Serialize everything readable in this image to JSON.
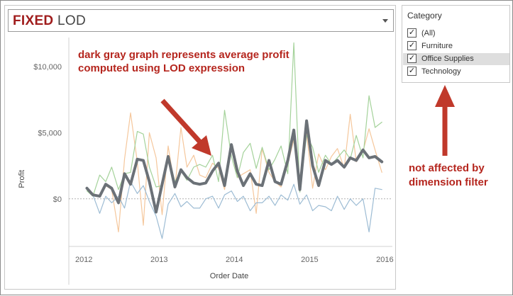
{
  "title": {
    "fixed": "FIXED",
    "lod": " LOD"
  },
  "filter": {
    "title": "Category",
    "items": [
      {
        "label": "(All)",
        "checked": true,
        "check": "✓"
      },
      {
        "label": "Furniture",
        "checked": true,
        "check": "✓"
      },
      {
        "label": "Office Supplies",
        "checked": true,
        "check": "✓"
      },
      {
        "label": "Technology",
        "checked": true,
        "check": "✓"
      }
    ]
  },
  "annotations": {
    "gray_graph": "dark gray graph represents average profit computed using LOD expression",
    "dimension": "not affected by dimension filter"
  },
  "colors": {
    "annotation": "#b5261e",
    "arrow": "#c0392b",
    "fixed_title": "#a01d1d"
  },
  "chart_data": {
    "type": "line",
    "xlabel": "Order Date",
    "ylabel": "Profit",
    "x_ticks": [
      "2012",
      "2013",
      "2014",
      "2015",
      "2016"
    ],
    "y_ticks": [
      {
        "value": 0,
        "label": "$0"
      },
      {
        "value": 5000,
        "label": "$5,000"
      },
      {
        "value": 10000,
        "label": "$10,000"
      }
    ],
    "ylim": [
      -3600,
      12200
    ],
    "xlim": [
      2011.8,
      2016.1
    ],
    "series": [
      {
        "color": "#f5c79c",
        "width": 1.2,
        "x": [
          2012.04,
          2012.12,
          2012.21,
          2012.29,
          2012.37,
          2012.46,
          2012.54,
          2012.62,
          2012.71,
          2012.79,
          2012.87,
          2012.96,
          2013.04,
          2013.12,
          2013.21,
          2013.29,
          2013.37,
          2013.46,
          2013.54,
          2013.62,
          2013.71,
          2013.79,
          2013.87,
          2013.96,
          2014.04,
          2014.12,
          2014.21,
          2014.29,
          2014.37,
          2014.46,
          2014.54,
          2014.62,
          2014.71,
          2014.79,
          2014.87,
          2014.96,
          2015.04,
          2015.12,
          2015.21,
          2015.29,
          2015.37,
          2015.46,
          2015.54,
          2015.62,
          2015.71,
          2015.79,
          2015.87,
          2015.96
        ],
        "values": [
          800,
          400,
          200,
          1000,
          700,
          -2500,
          3000,
          6500,
          2800,
          -2000,
          5000,
          3100,
          -1200,
          4000,
          800,
          5400,
          2400,
          3300,
          1800,
          1600,
          2700,
          2300,
          700,
          3900,
          1600,
          1900,
          2200,
          -1100,
          3800,
          2000,
          1300,
          900,
          2600,
          4500,
          1200,
          5000,
          800,
          3400,
          2200,
          3200,
          3800,
          2300,
          6400,
          2800,
          3600,
          5300,
          3700,
          2000
        ]
      },
      {
        "color": "#a4d29a",
        "width": 1.2,
        "x": [
          2012.04,
          2012.12,
          2012.21,
          2012.29,
          2012.37,
          2012.46,
          2012.54,
          2012.62,
          2012.71,
          2012.79,
          2012.87,
          2012.96,
          2013.04,
          2013.12,
          2013.21,
          2013.29,
          2013.37,
          2013.46,
          2013.54,
          2013.62,
          2013.71,
          2013.79,
          2013.87,
          2013.96,
          2014.04,
          2014.12,
          2014.21,
          2014.29,
          2014.37,
          2014.46,
          2014.54,
          2014.62,
          2014.71,
          2014.79,
          2014.87,
          2014.96,
          2015.04,
          2015.12,
          2015.21,
          2015.29,
          2015.37,
          2015.46,
          2015.54,
          2015.62,
          2015.71,
          2015.79,
          2015.87,
          2015.96
        ],
        "values": [
          600,
          200,
          1800,
          1300,
          2400,
          700,
          1900,
          2000,
          5100,
          4900,
          2400,
          900,
          1000,
          3100,
          1300,
          2100,
          1400,
          2400,
          2600,
          2400,
          3300,
          1300,
          6700,
          3200,
          1600,
          3500,
          4200,
          2300,
          3900,
          2200,
          3000,
          4000,
          1900,
          11800,
          500,
          4800,
          3900,
          2000,
          3300,
          2600,
          3100,
          3700,
          3000,
          4800,
          3100,
          7800,
          5400,
          5800
        ]
      },
      {
        "color": "#9dbcd4",
        "width": 1.2,
        "x": [
          2012.04,
          2012.12,
          2012.21,
          2012.29,
          2012.37,
          2012.46,
          2012.54,
          2012.62,
          2012.71,
          2012.79,
          2012.87,
          2012.96,
          2013.04,
          2013.12,
          2013.21,
          2013.29,
          2013.37,
          2013.46,
          2013.54,
          2013.62,
          2013.71,
          2013.79,
          2013.87,
          2013.96,
          2014.04,
          2014.12,
          2014.21,
          2014.29,
          2014.37,
          2014.46,
          2014.54,
          2014.62,
          2014.71,
          2014.79,
          2014.87,
          2014.96,
          2015.04,
          2015.12,
          2015.21,
          2015.29,
          2015.37,
          2015.46,
          2015.54,
          2015.62,
          2015.71,
          2015.79,
          2015.87,
          2015.96
        ],
        "values": [
          800,
          300,
          -1100,
          200,
          -300,
          200,
          -700,
          1300,
          400,
          1000,
          -200,
          -1300,
          -3000,
          -400,
          400,
          -600,
          -200,
          -700,
          -700,
          0,
          200,
          -700,
          300,
          600,
          -200,
          200,
          -900,
          -300,
          -300,
          200,
          -500,
          300,
          -100,
          1100,
          -400,
          300,
          -900,
          -500,
          -600,
          -900,
          200,
          -800,
          0,
          -500,
          0,
          -2500,
          800,
          700
        ]
      },
      {
        "color": "#6b7177",
        "width": 4,
        "x": [
          2012.04,
          2012.12,
          2012.21,
          2012.29,
          2012.37,
          2012.46,
          2012.54,
          2012.62,
          2012.71,
          2012.79,
          2012.87,
          2012.96,
          2013.04,
          2013.12,
          2013.21,
          2013.29,
          2013.37,
          2013.46,
          2013.54,
          2013.62,
          2013.71,
          2013.79,
          2013.87,
          2013.96,
          2014.04,
          2014.12,
          2014.21,
          2014.29,
          2014.37,
          2014.46,
          2014.54,
          2014.62,
          2014.71,
          2014.79,
          2014.87,
          2014.96,
          2015.04,
          2015.12,
          2015.21,
          2015.29,
          2015.37,
          2015.46,
          2015.54,
          2015.62,
          2015.71,
          2015.79,
          2015.87,
          2015.96
        ],
        "values": [
          800,
          300,
          200,
          1100,
          800,
          -300,
          1900,
          1100,
          3000,
          2900,
          1300,
          -1000,
          1100,
          3200,
          900,
          2200,
          1600,
          1200,
          1100,
          1200,
          2100,
          2700,
          1000,
          4100,
          2100,
          1000,
          1900,
          1100,
          1000,
          2900,
          1300,
          1100,
          2900,
          5200,
          700,
          5900,
          2500,
          1000,
          2900,
          2600,
          2900,
          2400,
          3100,
          2900,
          3700,
          3100,
          3200,
          2800
        ]
      }
    ]
  }
}
